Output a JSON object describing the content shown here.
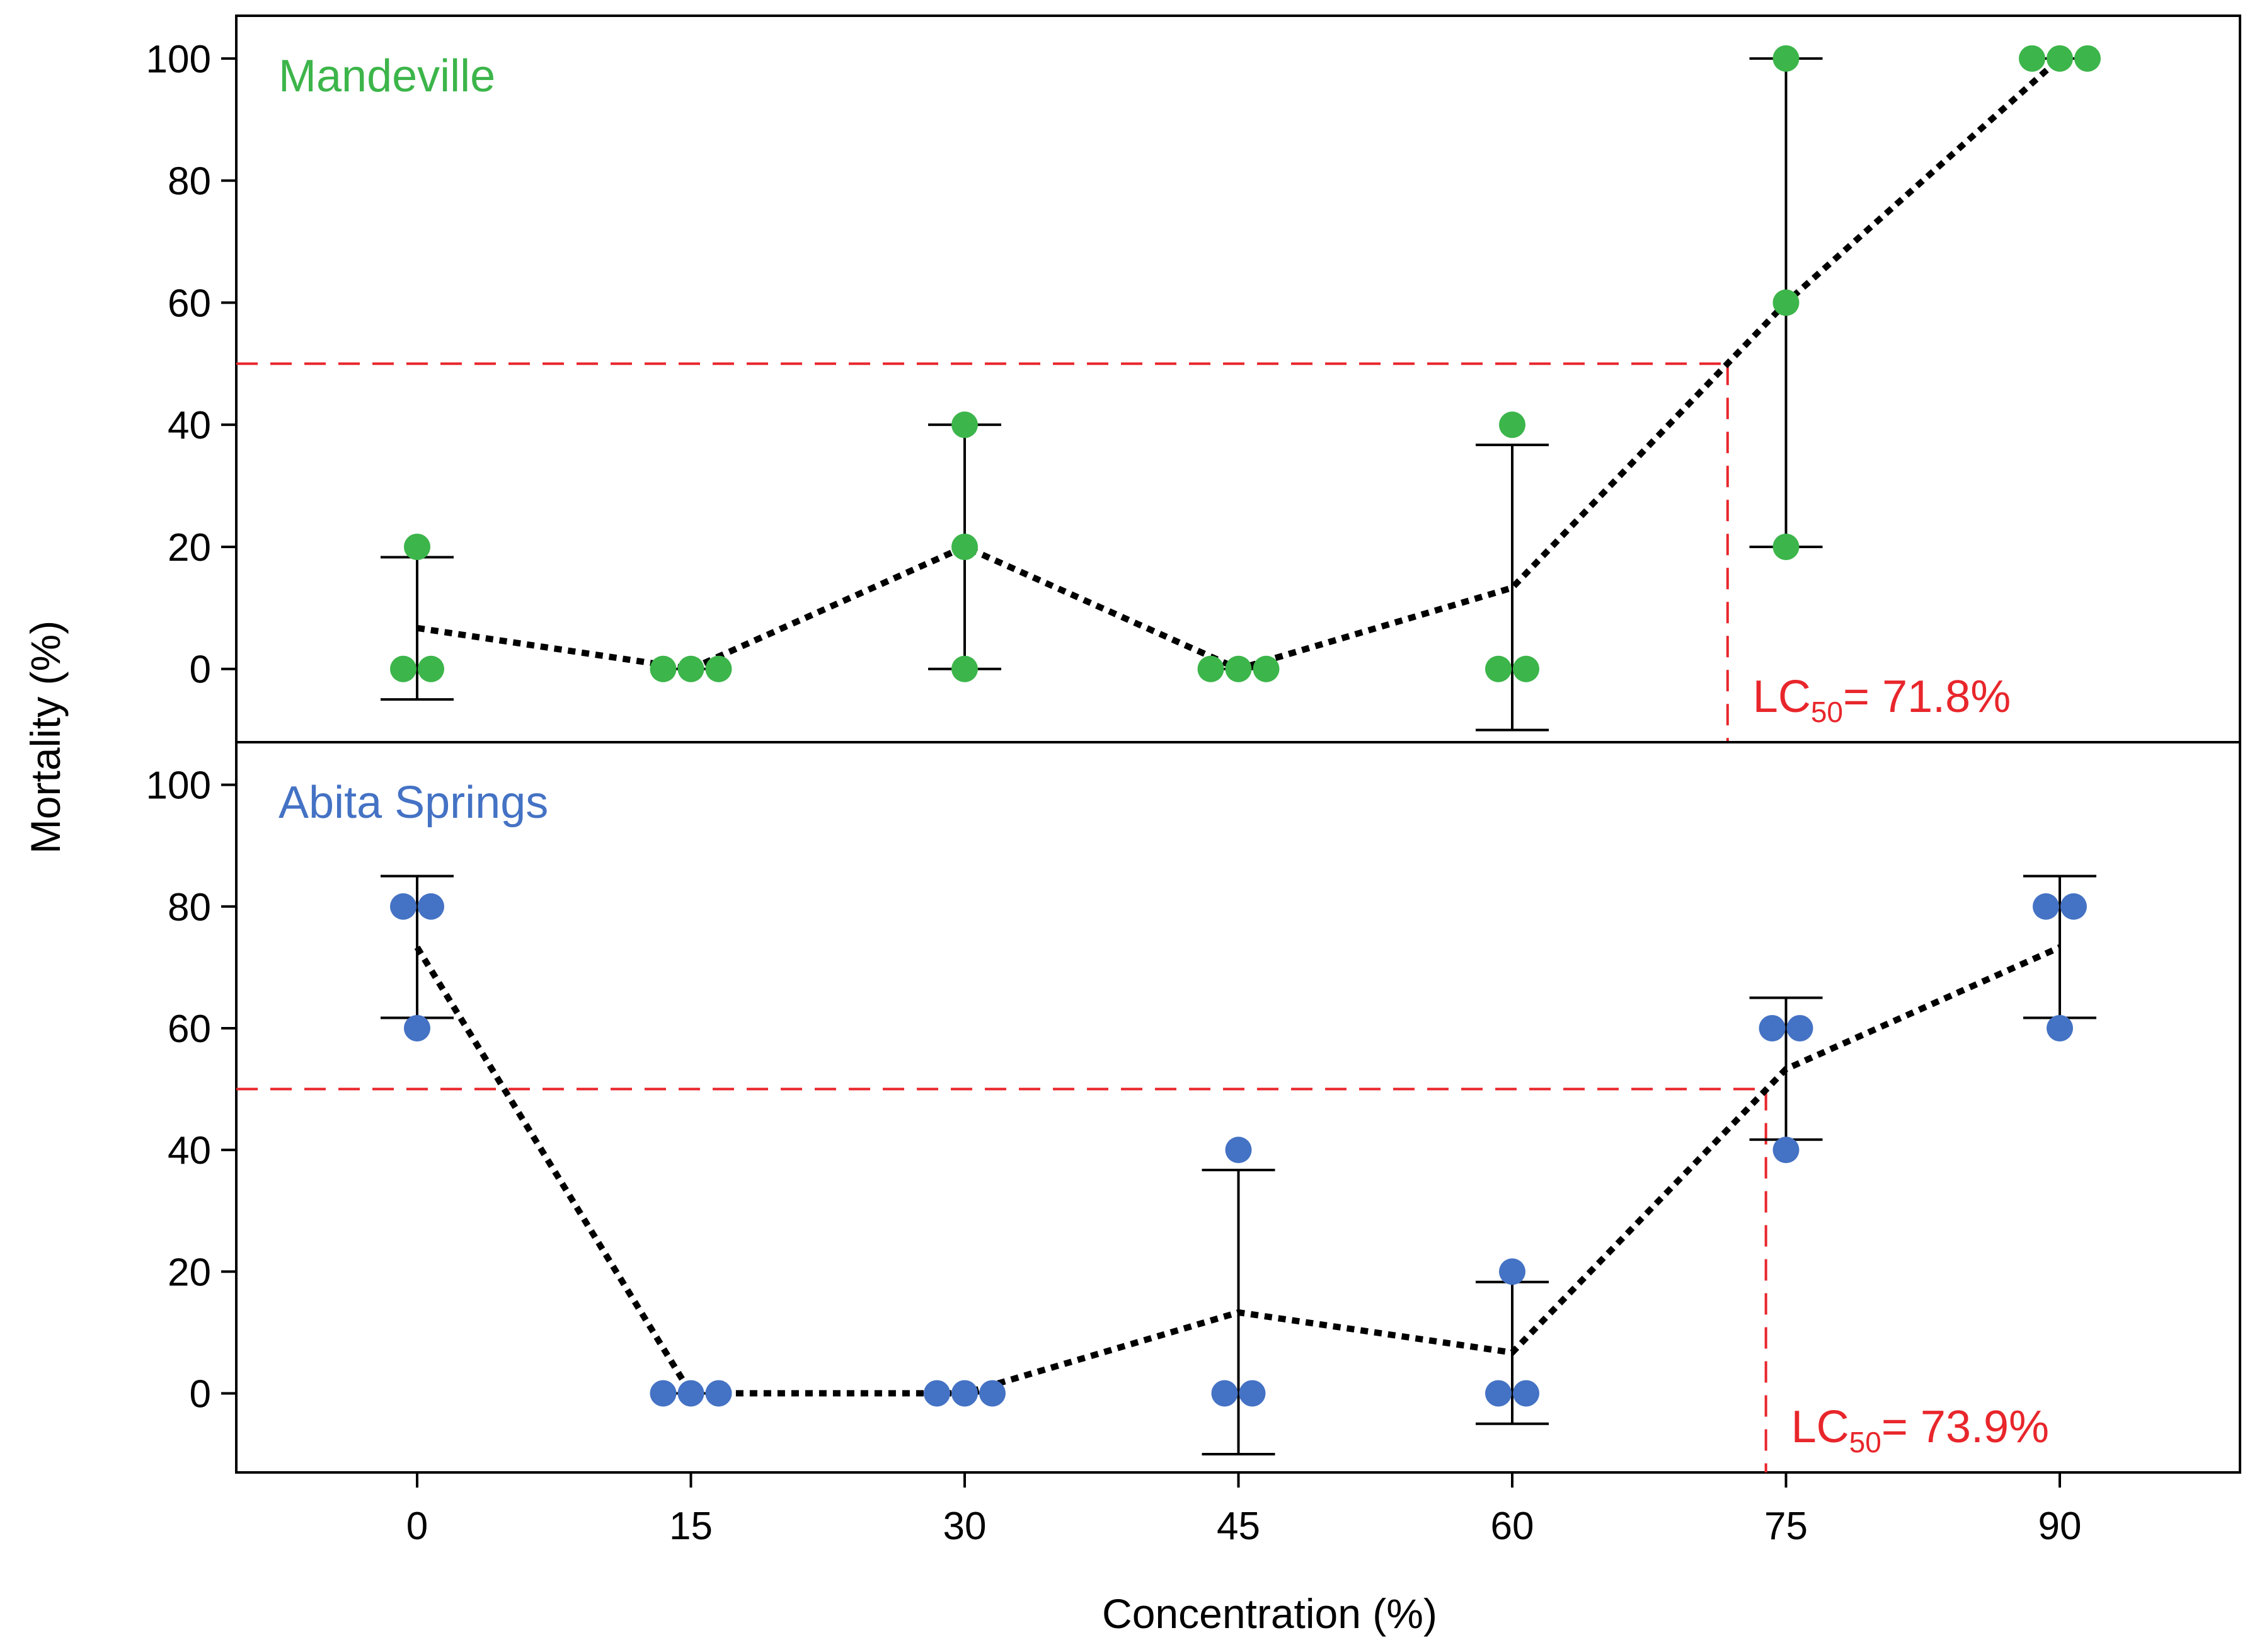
{
  "chart_data": [
    {
      "type": "scatter",
      "panel_label": "Mandeville",
      "color": "#3cb54a",
      "xlabel": "Concentration (%)",
      "ylabel": "Mortality (%)",
      "ylim": [
        -12,
        107
      ],
      "yticks": [
        "0",
        "20",
        "40",
        "60",
        "80",
        "100"
      ],
      "categories": [
        "0",
        "15",
        "30",
        "45",
        "60",
        "75",
        "90"
      ],
      "x": [
        0,
        15,
        30,
        45,
        60,
        75,
        90
      ],
      "points": [
        [
          0,
          0,
          20
        ],
        [
          0,
          0,
          0
        ],
        [
          0,
          20,
          40
        ],
        [
          0,
          0,
          0
        ],
        [
          0,
          0,
          40
        ],
        [
          20,
          60,
          100
        ],
        [
          100,
          100,
          100
        ]
      ],
      "mean": [
        6.7,
        0,
        20,
        0,
        13.3,
        60,
        100
      ],
      "err_low": [
        -5,
        0,
        0,
        0,
        -10,
        20,
        100
      ],
      "err_high": [
        18.3,
        0,
        40,
        0,
        36.7,
        100,
        100
      ],
      "threshold": 50,
      "lc50": 71.8,
      "lc50_prefix": "LC",
      "lc50_sub": "50",
      "lc50_text": "= 71.8%",
      "threshold_color": "#e8262b"
    },
    {
      "type": "scatter",
      "panel_label": "Abita Springs",
      "color": "#4472c4",
      "xlabel": "Concentration (%)",
      "ylabel": "Mortality (%)",
      "ylim": [
        -13,
        107
      ],
      "yticks": [
        "0",
        "20",
        "40",
        "60",
        "80",
        "100"
      ],
      "categories": [
        "0",
        "15",
        "30",
        "45",
        "60",
        "75",
        "90"
      ],
      "x": [
        0,
        15,
        30,
        45,
        60,
        75,
        90
      ],
      "points": [
        [
          60,
          80,
          80
        ],
        [
          0,
          0,
          0
        ],
        [
          0,
          0,
          0
        ],
        [
          0,
          0,
          40
        ],
        [
          0,
          0,
          20
        ],
        [
          40,
          60,
          60
        ],
        [
          60,
          80,
          80
        ]
      ],
      "mean": [
        73.3,
        0,
        0,
        13.3,
        6.7,
        53.3,
        73.3
      ],
      "err_low": [
        61.7,
        0,
        0,
        -10,
        -5,
        41.7,
        61.7
      ],
      "err_high": [
        85,
        0,
        0,
        36.7,
        18.3,
        65,
        85
      ],
      "threshold": 50,
      "lc50": 73.9,
      "lc50_prefix": "LC",
      "lc50_sub": "50",
      "lc50_text": "= 73.9%",
      "threshold_color": "#e8262b"
    }
  ]
}
